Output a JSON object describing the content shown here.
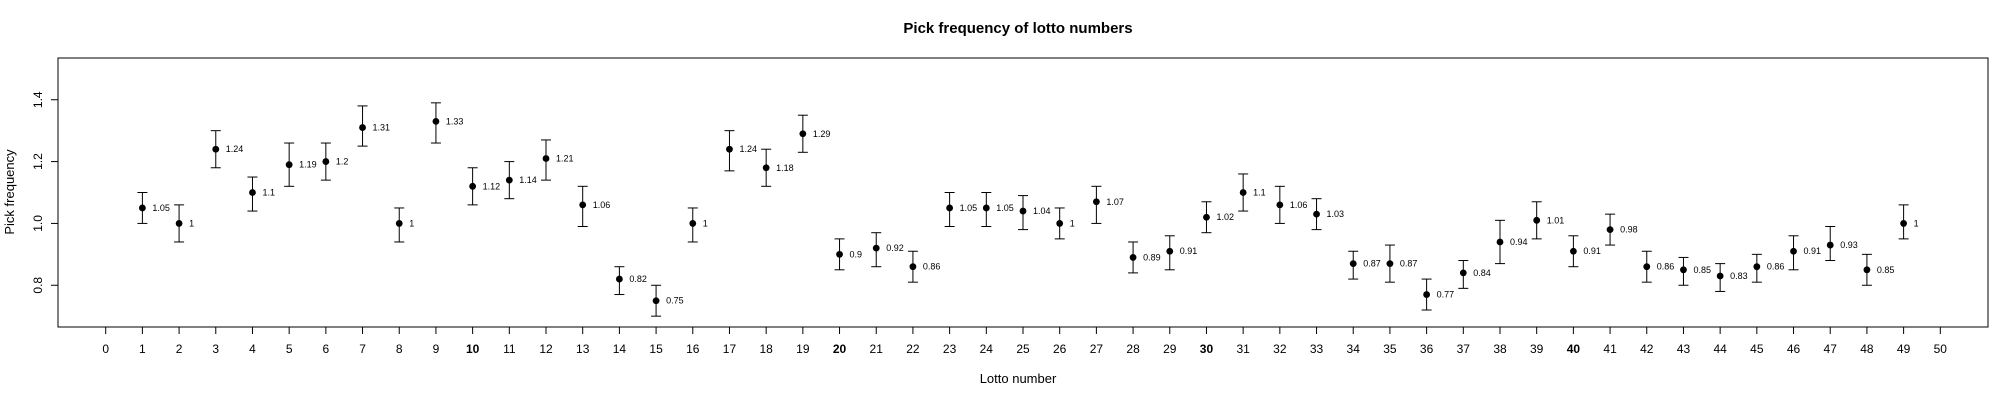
{
  "chart_data": {
    "type": "scatter",
    "title": "Pick frequency of lotto numbers",
    "xlabel": "Lotto number",
    "ylabel": "Pick frequency",
    "xlim": [
      -1.3,
      51.3
    ],
    "ylim": [
      0.665,
      1.535
    ],
    "x_ticks": [
      0,
      1,
      2,
      3,
      4,
      5,
      6,
      7,
      8,
      9,
      10,
      11,
      12,
      13,
      14,
      15,
      16,
      17,
      18,
      19,
      20,
      21,
      22,
      23,
      24,
      25,
      26,
      27,
      28,
      29,
      30,
      31,
      32,
      33,
      34,
      35,
      36,
      37,
      38,
      39,
      40,
      41,
      42,
      43,
      44,
      45,
      46,
      47,
      48,
      49,
      50
    ],
    "x_tick_bold": [
      10,
      20,
      30,
      40
    ],
    "y_ticks": [
      0.8,
      1.0,
      1.2,
      1.4
    ],
    "y_tick_labels": [
      "0.8",
      "1.0",
      "1.2",
      "1.4"
    ],
    "grid": false,
    "points": [
      {
        "x": 1,
        "y": 1.05,
        "lo": 1.0,
        "hi": 1.1,
        "label": "1.05"
      },
      {
        "x": 2,
        "y": 1.0,
        "lo": 0.94,
        "hi": 1.06,
        "label": "1"
      },
      {
        "x": 3,
        "y": 1.24,
        "lo": 1.18,
        "hi": 1.3,
        "label": "1.24"
      },
      {
        "x": 4,
        "y": 1.1,
        "lo": 1.04,
        "hi": 1.15,
        "label": "1.1"
      },
      {
        "x": 5,
        "y": 1.19,
        "lo": 1.12,
        "hi": 1.26,
        "label": "1.19"
      },
      {
        "x": 6,
        "y": 1.2,
        "lo": 1.14,
        "hi": 1.26,
        "label": "1.2"
      },
      {
        "x": 7,
        "y": 1.31,
        "lo": 1.25,
        "hi": 1.38,
        "label": "1.31"
      },
      {
        "x": 8,
        "y": 1.0,
        "lo": 0.94,
        "hi": 1.05,
        "label": "1"
      },
      {
        "x": 9,
        "y": 1.33,
        "lo": 1.26,
        "hi": 1.39,
        "label": "1.33"
      },
      {
        "x": 10,
        "y": 1.12,
        "lo": 1.06,
        "hi": 1.18,
        "label": "1.12"
      },
      {
        "x": 11,
        "y": 1.14,
        "lo": 1.08,
        "hi": 1.2,
        "label": "1.14"
      },
      {
        "x": 12,
        "y": 1.21,
        "lo": 1.14,
        "hi": 1.27,
        "label": "1.21"
      },
      {
        "x": 13,
        "y": 1.06,
        "lo": 0.99,
        "hi": 1.12,
        "label": "1.06"
      },
      {
        "x": 14,
        "y": 0.82,
        "lo": 0.77,
        "hi": 0.86,
        "label": "0.82"
      },
      {
        "x": 15,
        "y": 0.75,
        "lo": 0.7,
        "hi": 0.8,
        "label": "0.75"
      },
      {
        "x": 16,
        "y": 1.0,
        "lo": 0.94,
        "hi": 1.05,
        "label": "1"
      },
      {
        "x": 17,
        "y": 1.24,
        "lo": 1.17,
        "hi": 1.3,
        "label": "1.24"
      },
      {
        "x": 18,
        "y": 1.18,
        "lo": 1.12,
        "hi": 1.24,
        "label": "1.18"
      },
      {
        "x": 19,
        "y": 1.29,
        "lo": 1.23,
        "hi": 1.35,
        "label": "1.29"
      },
      {
        "x": 20,
        "y": 0.9,
        "lo": 0.85,
        "hi": 0.95,
        "label": "0.9"
      },
      {
        "x": 21,
        "y": 0.92,
        "lo": 0.86,
        "hi": 0.97,
        "label": "0.92"
      },
      {
        "x": 22,
        "y": 0.86,
        "lo": 0.81,
        "hi": 0.91,
        "label": "0.86"
      },
      {
        "x": 23,
        "y": 1.05,
        "lo": 0.99,
        "hi": 1.1,
        "label": "1.05"
      },
      {
        "x": 24,
        "y": 1.05,
        "lo": 0.99,
        "hi": 1.1,
        "label": "1.05"
      },
      {
        "x": 25,
        "y": 1.04,
        "lo": 0.98,
        "hi": 1.09,
        "label": "1.04"
      },
      {
        "x": 26,
        "y": 1.0,
        "lo": 0.95,
        "hi": 1.05,
        "label": "1"
      },
      {
        "x": 27,
        "y": 1.07,
        "lo": 1.0,
        "hi": 1.12,
        "label": "1.07"
      },
      {
        "x": 28,
        "y": 0.89,
        "lo": 0.84,
        "hi": 0.94,
        "label": "0.89"
      },
      {
        "x": 29,
        "y": 0.91,
        "lo": 0.85,
        "hi": 0.96,
        "label": "0.91"
      },
      {
        "x": 30,
        "y": 1.02,
        "lo": 0.97,
        "hi": 1.07,
        "label": "1.02"
      },
      {
        "x": 31,
        "y": 1.1,
        "lo": 1.04,
        "hi": 1.16,
        "label": "1.1"
      },
      {
        "x": 32,
        "y": 1.06,
        "lo": 1.0,
        "hi": 1.12,
        "label": "1.06"
      },
      {
        "x": 33,
        "y": 1.03,
        "lo": 0.98,
        "hi": 1.08,
        "label": "1.03"
      },
      {
        "x": 34,
        "y": 0.87,
        "lo": 0.82,
        "hi": 0.91,
        "label": "0.87"
      },
      {
        "x": 35,
        "y": 0.87,
        "lo": 0.81,
        "hi": 0.93,
        "label": "0.87"
      },
      {
        "x": 36,
        "y": 0.77,
        "lo": 0.72,
        "hi": 0.82,
        "label": "0.77"
      },
      {
        "x": 37,
        "y": 0.84,
        "lo": 0.79,
        "hi": 0.88,
        "label": "0.84"
      },
      {
        "x": 38,
        "y": 0.94,
        "lo": 0.87,
        "hi": 1.01,
        "label": "0.94"
      },
      {
        "x": 39,
        "y": 1.01,
        "lo": 0.95,
        "hi": 1.07,
        "label": "1.01"
      },
      {
        "x": 40,
        "y": 0.91,
        "lo": 0.86,
        "hi": 0.96,
        "label": "0.91"
      },
      {
        "x": 41,
        "y": 0.98,
        "lo": 0.93,
        "hi": 1.03,
        "label": "0.98"
      },
      {
        "x": 42,
        "y": 0.86,
        "lo": 0.81,
        "hi": 0.91,
        "label": "0.86"
      },
      {
        "x": 43,
        "y": 0.85,
        "lo": 0.8,
        "hi": 0.89,
        "label": "0.85"
      },
      {
        "x": 44,
        "y": 0.83,
        "lo": 0.78,
        "hi": 0.87,
        "label": "0.83"
      },
      {
        "x": 45,
        "y": 0.86,
        "lo": 0.81,
        "hi": 0.9,
        "label": "0.86"
      },
      {
        "x": 46,
        "y": 0.91,
        "lo": 0.85,
        "hi": 0.96,
        "label": "0.91"
      },
      {
        "x": 47,
        "y": 0.93,
        "lo": 0.88,
        "hi": 0.99,
        "label": "0.93"
      },
      {
        "x": 48,
        "y": 0.85,
        "lo": 0.8,
        "hi": 0.9,
        "label": "0.85"
      },
      {
        "x": 49,
        "y": 1.0,
        "lo": 0.95,
        "hi": 1.06,
        "label": "1"
      }
    ]
  }
}
